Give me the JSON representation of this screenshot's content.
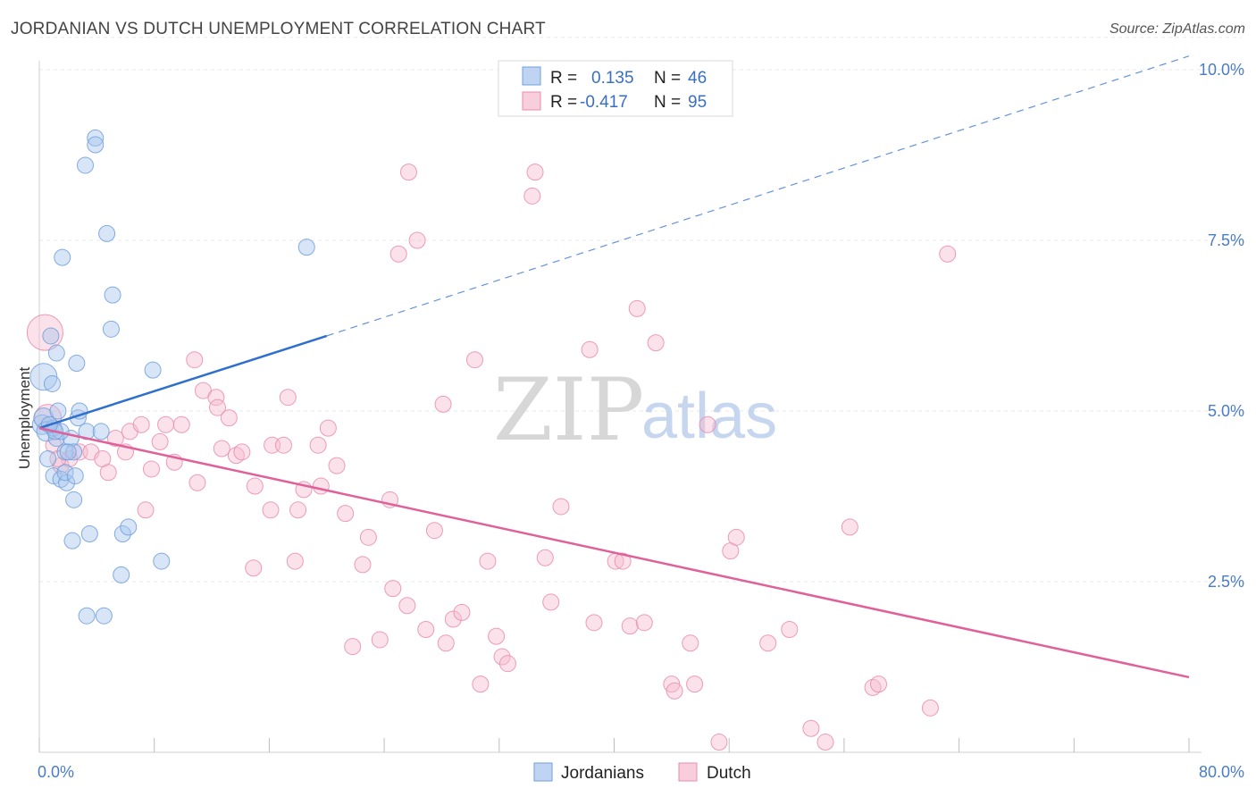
{
  "title": "JORDANIAN VS DUTCH UNEMPLOYMENT CORRELATION CHART",
  "source": "Source: ZipAtlas.com",
  "watermark": {
    "zip": "ZIP",
    "atlas": "atlas"
  },
  "colors": {
    "jordanians": "#a9c6ee",
    "jordanians_stroke": "#6f9fdc",
    "jordanians_line": "#2f6fce",
    "dutch": "#f6bcd0",
    "dutch_stroke": "#e98cad",
    "dutch_line": "#e0609a"
  },
  "legend_top": {
    "rows": [
      {
        "r_label": "R =",
        "r_value": "0.135",
        "n_label": "N =",
        "n_value": "46"
      },
      {
        "r_label": "R =",
        "r_value": "-0.417",
        "n_label": "N =",
        "n_value": "95"
      }
    ]
  },
  "chart_data": {
    "type": "scatter",
    "xlabel": "",
    "ylabel": "Unemployment",
    "xlim": [
      0,
      80
    ],
    "ylim": [
      0,
      10.5
    ],
    "x_tick_labels": [
      {
        "value": 0,
        "label": "0.0%"
      },
      {
        "value": 80,
        "label": "80.0%"
      }
    ],
    "y_tick_labels": [
      {
        "value": 2.5,
        "label": "2.5%"
      },
      {
        "value": 5.0,
        "label": "5.0%"
      },
      {
        "value": 7.5,
        "label": "7.5%"
      },
      {
        "value": 10.0,
        "label": "10.0%"
      }
    ],
    "grid": true,
    "legend_position": "top-center",
    "series": [
      {
        "name": "Jordanians",
        "r": 0.135,
        "n": 46,
        "trend": {
          "x0": 0,
          "y0": 4.75,
          "x1": 20,
          "y1": 6.1,
          "dashed_to_x": 80,
          "dashed_to_y": 10.2
        },
        "points": [
          [
            0.2,
            4.8
          ],
          [
            0.3,
            4.9
          ],
          [
            0.5,
            4.7
          ],
          [
            0.6,
            4.3
          ],
          [
            0.3,
            5.5
          ],
          [
            0.9,
            5.4
          ],
          [
            0.8,
            6.1
          ],
          [
            1.2,
            5.85
          ],
          [
            2.6,
            5.7
          ],
          [
            1.6,
            7.25
          ],
          [
            1.0,
            4.05
          ],
          [
            1.5,
            4.0
          ],
          [
            1.9,
            3.95
          ],
          [
            1.8,
            4.1
          ],
          [
            2.5,
            4.05
          ],
          [
            1.2,
            4.6
          ],
          [
            1.3,
            5.0
          ],
          [
            2.7,
            4.9
          ],
          [
            2.8,
            5.0
          ],
          [
            2.2,
            4.6
          ],
          [
            1.8,
            4.4
          ],
          [
            2.4,
            4.4
          ],
          [
            1.0,
            4.75
          ],
          [
            1.5,
            4.7
          ],
          [
            3.3,
            4.7
          ],
          [
            4.3,
            4.7
          ],
          [
            2.4,
            3.7
          ],
          [
            3.5,
            3.2
          ],
          [
            2.3,
            3.1
          ],
          [
            5.8,
            3.2
          ],
          [
            6.2,
            3.3
          ],
          [
            5.7,
            2.6
          ],
          [
            8.5,
            2.8
          ],
          [
            3.3,
            2.0
          ],
          [
            4.5,
            2.0
          ],
          [
            3.9,
            9.0
          ],
          [
            3.9,
            8.9
          ],
          [
            3.2,
            8.6
          ],
          [
            4.7,
            7.6
          ],
          [
            5.1,
            6.7
          ],
          [
            5.0,
            6.2
          ],
          [
            7.9,
            5.6
          ],
          [
            18.6,
            7.4
          ],
          [
            1.1,
            4.7
          ],
          [
            0.7,
            4.8
          ],
          [
            2.0,
            4.4
          ]
        ],
        "sizes": [
          22,
          22,
          22,
          18,
          30,
          18,
          18,
          18,
          18,
          18,
          18,
          18,
          18,
          18,
          18,
          18,
          18,
          18,
          18,
          18,
          18,
          18,
          18,
          18,
          18,
          18,
          18,
          18,
          18,
          18,
          18,
          18,
          18,
          18,
          18,
          18,
          18,
          18,
          18,
          18,
          18,
          18,
          18,
          18,
          18,
          18
        ]
      },
      {
        "name": "Dutch",
        "r": -0.417,
        "n": 95,
        "trend": {
          "x0": 0,
          "y0": 4.75,
          "x1": 80,
          "y1": 1.1
        },
        "points": [
          [
            0.4,
            6.15
          ],
          [
            0.6,
            4.9
          ],
          [
            1.0,
            4.5
          ],
          [
            1.5,
            4.2
          ],
          [
            2.1,
            4.3
          ],
          [
            2.8,
            4.4
          ],
          [
            3.6,
            4.4
          ],
          [
            4.4,
            4.3
          ],
          [
            4.8,
            4.1
          ],
          [
            5.3,
            4.6
          ],
          [
            6.0,
            4.4
          ],
          [
            6.3,
            4.7
          ],
          [
            7.1,
            4.8
          ],
          [
            7.8,
            4.15
          ],
          [
            8.4,
            4.55
          ],
          [
            9.4,
            4.25
          ],
          [
            9.9,
            4.8
          ],
          [
            10.8,
            5.75
          ],
          [
            11.0,
            3.95
          ],
          [
            11.4,
            5.3
          ],
          [
            12.3,
            5.2
          ],
          [
            12.7,
            4.45
          ],
          [
            12.4,
            5.05
          ],
          [
            13.2,
            4.9
          ],
          [
            13.7,
            4.35
          ],
          [
            14.1,
            4.4
          ],
          [
            14.9,
            2.7
          ],
          [
            15.0,
            3.9
          ],
          [
            16.1,
            3.55
          ],
          [
            16.2,
            4.5
          ],
          [
            17.0,
            4.5
          ],
          [
            17.3,
            5.2
          ],
          [
            17.8,
            2.8
          ],
          [
            18.0,
            3.55
          ],
          [
            18.4,
            3.85
          ],
          [
            19.4,
            4.5
          ],
          [
            19.6,
            3.9
          ],
          [
            20.1,
            4.75
          ],
          [
            20.7,
            4.2
          ],
          [
            21.3,
            3.5
          ],
          [
            21.8,
            1.55
          ],
          [
            22.5,
            2.75
          ],
          [
            22.9,
            3.15
          ],
          [
            23.7,
            1.65
          ],
          [
            24.4,
            3.7
          ],
          [
            24.6,
            2.4
          ],
          [
            25.0,
            7.3
          ],
          [
            25.6,
            2.15
          ],
          [
            25.7,
            8.5
          ],
          [
            26.3,
            7.5
          ],
          [
            26.9,
            1.8
          ],
          [
            27.5,
            3.25
          ],
          [
            28.1,
            5.1
          ],
          [
            28.3,
            1.6
          ],
          [
            28.8,
            1.95
          ],
          [
            29.4,
            2.05
          ],
          [
            30.3,
            5.75
          ],
          [
            30.7,
            1.0
          ],
          [
            31.2,
            2.8
          ],
          [
            31.8,
            1.7
          ],
          [
            32.2,
            1.4
          ],
          [
            32.6,
            1.3
          ],
          [
            34.3,
            8.15
          ],
          [
            34.5,
            8.5
          ],
          [
            35.2,
            2.85
          ],
          [
            35.6,
            2.2
          ],
          [
            36.3,
            3.6
          ],
          [
            38.3,
            5.9
          ],
          [
            38.6,
            1.9
          ],
          [
            40.1,
            2.8
          ],
          [
            40.6,
            2.8
          ],
          [
            41.1,
            1.85
          ],
          [
            41.6,
            6.5
          ],
          [
            42.1,
            1.9
          ],
          [
            42.9,
            6.0
          ],
          [
            44.0,
            1.0
          ],
          [
            44.2,
            0.9
          ],
          [
            45.3,
            1.6
          ],
          [
            45.6,
            1.0
          ],
          [
            46.5,
            4.8
          ],
          [
            47.3,
            0.15
          ],
          [
            48.1,
            2.95
          ],
          [
            48.5,
            3.15
          ],
          [
            50.7,
            1.6
          ],
          [
            52.2,
            1.8
          ],
          [
            53.7,
            0.35
          ],
          [
            54.7,
            0.15
          ],
          [
            56.4,
            3.3
          ],
          [
            58.0,
            0.95
          ],
          [
            58.4,
            1.0
          ],
          [
            62.0,
            0.65
          ],
          [
            63.2,
            7.3
          ],
          [
            1.3,
            4.3
          ],
          [
            7.4,
            3.55
          ],
          [
            8.8,
            4.8
          ]
        ],
        "sizes": [
          40,
          30,
          18,
          18,
          18,
          18,
          18,
          18,
          18,
          18,
          18,
          18,
          18,
          18,
          18,
          18,
          18,
          18,
          18,
          18,
          18,
          18,
          18,
          18,
          18,
          18,
          18,
          18,
          18,
          18,
          18,
          18,
          18,
          18,
          18,
          18,
          18,
          18,
          18,
          18,
          18,
          18,
          18,
          18,
          18,
          18,
          18,
          18,
          18,
          18,
          18,
          18,
          18,
          18,
          18,
          18,
          18,
          18,
          18,
          18,
          18,
          18,
          18,
          18,
          18,
          18,
          18,
          18,
          18,
          18,
          18,
          18,
          18,
          18,
          18,
          18,
          18,
          18,
          18,
          18,
          18,
          18,
          18,
          18,
          18,
          18,
          18,
          18,
          18,
          18,
          18,
          18,
          18,
          18,
          18
        ]
      }
    ]
  }
}
